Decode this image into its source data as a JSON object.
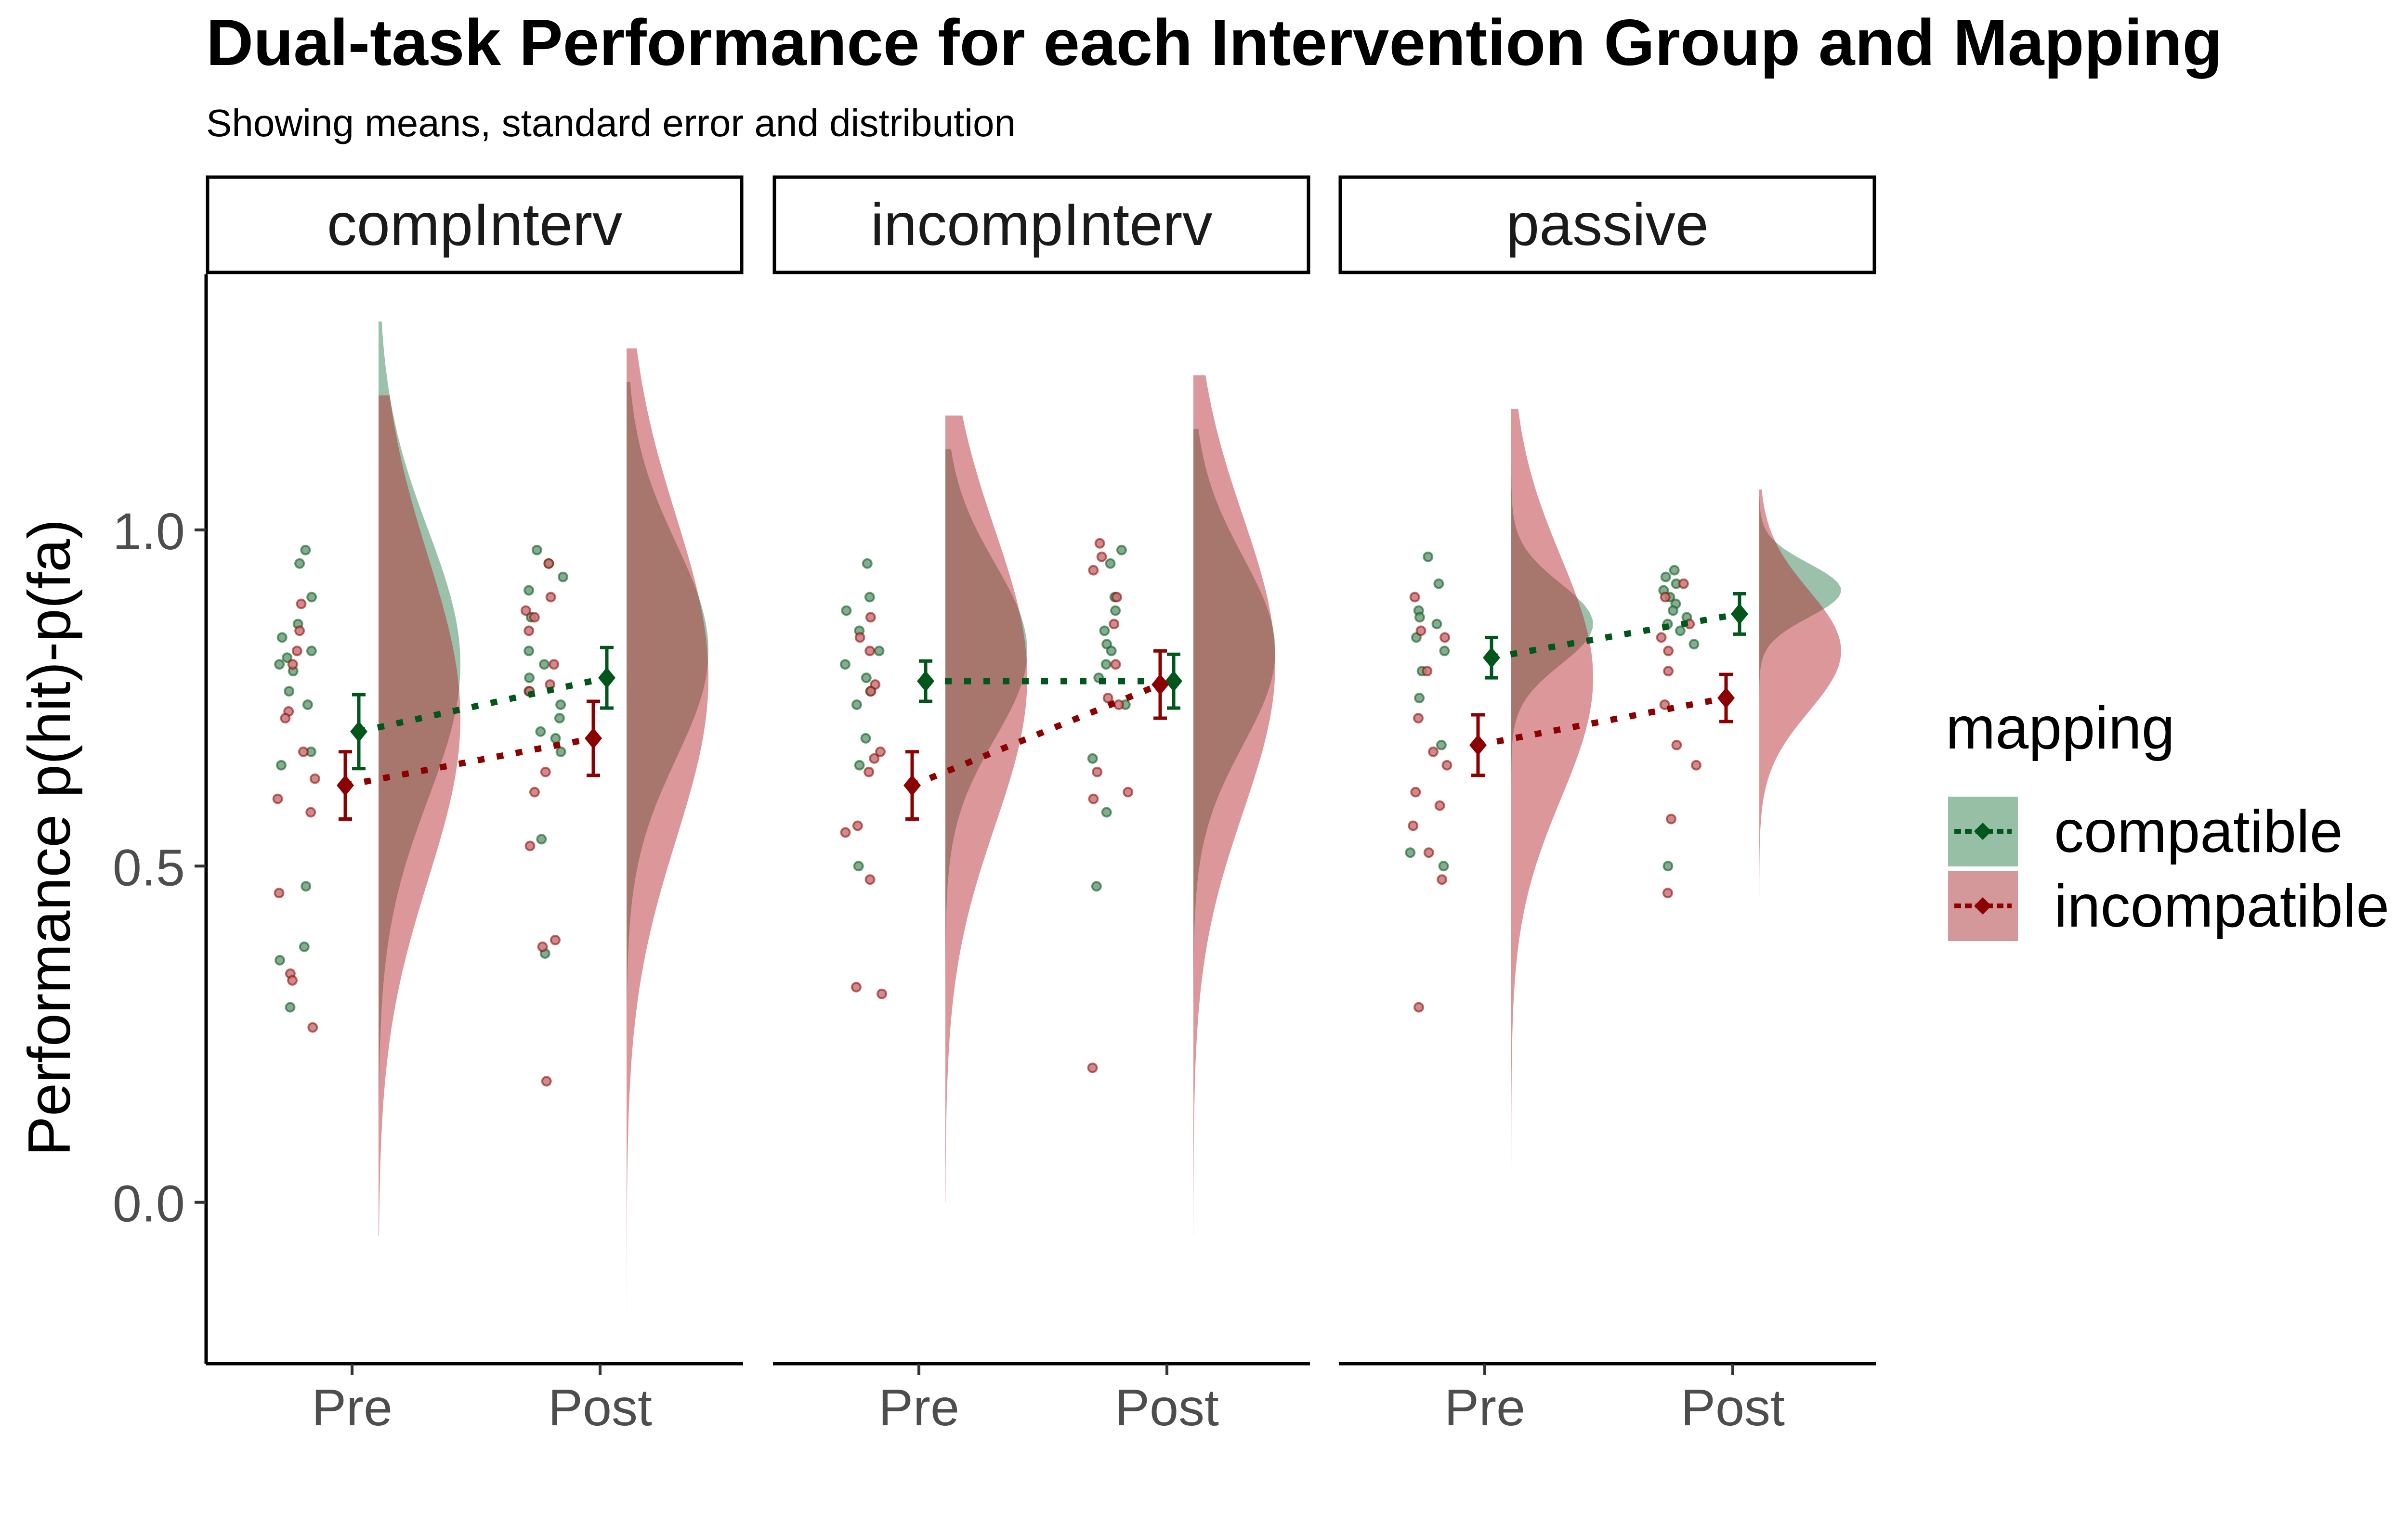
{
  "header": {
    "title": "Dual-task Performance for each Intervention Group and Mapping",
    "subtitle": "Showing means, standard error and distribution"
  },
  "legend": {
    "title": "mapping",
    "items": [
      {
        "label": "compatible",
        "color": "#00561b",
        "fill": "#96bfa6"
      },
      {
        "label": "incompatible",
        "color": "#8b0000",
        "fill": "#d5989a"
      }
    ]
  },
  "chart_data": {
    "type": "raincloud (half-violin + jittered points + mean ± SE)",
    "ylabel": "Performance p(hit)-p(fa)",
    "xlabel": "",
    "ylim": [
      -0.24,
      1.38
    ],
    "yticks": [
      0.0,
      0.5,
      1.0
    ],
    "ytick_labels": [
      "0.0",
      "0.5",
      "1.0"
    ],
    "categories": [
      "Pre",
      "Post"
    ],
    "facets": [
      {
        "name": "compInterv",
        "means": {
          "compatible": {
            "Pre": {
              "mean": 0.7,
              "se": 0.055
            },
            "Post": {
              "mean": 0.78,
              "se": 0.045
            }
          },
          "incompatible": {
            "Pre": {
              "mean": 0.62,
              "se": 0.05
            },
            "Post": {
              "mean": 0.69,
              "se": 0.055
            }
          }
        },
        "points": {
          "compatible": {
            "Pre": [
              0.97,
              0.95,
              0.9,
              0.86,
              0.84,
              0.82,
              0.81,
              0.8,
              0.79,
              0.76,
              0.74,
              0.67,
              0.65,
              0.47,
              0.38,
              0.36,
              0.29
            ],
            "Post": [
              0.97,
              0.95,
              0.93,
              0.91,
              0.87,
              0.82,
              0.8,
              0.78,
              0.76,
              0.74,
              0.72,
              0.7,
              0.69,
              0.67,
              0.54,
              0.37
            ]
          },
          "incompatible": {
            "Pre": [
              0.89,
              0.85,
              0.82,
              0.8,
              0.73,
              0.72,
              0.67,
              0.63,
              0.6,
              0.58,
              0.46,
              0.34,
              0.33,
              0.26
            ],
            "Post": [
              0.95,
              0.9,
              0.88,
              0.87,
              0.85,
              0.8,
              0.77,
              0.76,
              0.64,
              0.61,
              0.53,
              0.39,
              0.38,
              0.18
            ]
          }
        },
        "density": {
          "compatible": {
            "Pre": {
              "range": [
                -0.05,
                1.31
              ],
              "peak": 0.8,
              "sd": 0.2
            },
            "Post": {
              "range": [
                0.12,
                1.22
              ],
              "peak": 0.82,
              "sd": 0.16
            }
          },
          "incompatible": {
            "Pre": {
              "range": [
                -0.05,
                1.2
              ],
              "peak": 0.72,
              "sd": 0.24
            },
            "Post": {
              "range": [
                -0.17,
                1.27
              ],
              "peak": 0.78,
              "sd": 0.24
            }
          }
        }
      },
      {
        "name": "incompInterv",
        "means": {
          "compatible": {
            "Pre": {
              "mean": 0.775,
              "se": 0.03
            },
            "Post": {
              "mean": 0.775,
              "se": 0.04
            }
          },
          "incompatible": {
            "Pre": {
              "mean": 0.62,
              "se": 0.05
            },
            "Post": {
              "mean": 0.77,
              "se": 0.05
            }
          }
        },
        "points": {
          "compatible": {
            "Pre": [
              0.95,
              0.9,
              0.88,
              0.85,
              0.82,
              0.8,
              0.78,
              0.76,
              0.74,
              0.69,
              0.65,
              0.5
            ],
            "Post": [
              0.97,
              0.95,
              0.9,
              0.88,
              0.85,
              0.83,
              0.82,
              0.8,
              0.78,
              0.74,
              0.66,
              0.58,
              0.47
            ]
          },
          "incompatible": {
            "Pre": [
              0.87,
              0.84,
              0.82,
              0.77,
              0.76,
              0.67,
              0.66,
              0.64,
              0.56,
              0.55,
              0.48,
              0.32,
              0.31
            ],
            "Post": [
              0.98,
              0.96,
              0.94,
              0.9,
              0.86,
              0.8,
              0.75,
              0.74,
              0.64,
              0.61,
              0.6,
              0.2
            ]
          }
        },
        "density": {
          "compatible": {
            "Pre": {
              "range": [
                0.32,
                1.12
              ],
              "peak": 0.82,
              "sd": 0.13
            },
            "Post": {
              "range": [
                0.3,
                1.15
              ],
              "peak": 0.82,
              "sd": 0.14
            }
          },
          "incompatible": {
            "Pre": {
              "range": [
                0.0,
                1.17
              ],
              "peak": 0.78,
              "sd": 0.22
            },
            "Post": {
              "range": [
                -0.05,
                1.23
              ],
              "peak": 0.8,
              "sd": 0.22
            }
          }
        }
      },
      {
        "name": "passive",
        "means": {
          "compatible": {
            "Pre": {
              "mean": 0.81,
              "se": 0.03
            },
            "Post": {
              "mean": 0.875,
              "se": 0.03
            }
          },
          "incompatible": {
            "Pre": {
              "mean": 0.68,
              "se": 0.045
            },
            "Post": {
              "mean": 0.75,
              "se": 0.035
            }
          }
        },
        "points": {
          "compatible": {
            "Pre": [
              0.96,
              0.92,
              0.88,
              0.87,
              0.86,
              0.84,
              0.82,
              0.79,
              0.75,
              0.68,
              0.52,
              0.5
            ],
            "Post": [
              0.94,
              0.93,
              0.92,
              0.91,
              0.9,
              0.89,
              0.88,
              0.87,
              0.86,
              0.85,
              0.83,
              0.5
            ]
          },
          "incompatible": {
            "Pre": [
              0.9,
              0.85,
              0.84,
              0.79,
              0.72,
              0.67,
              0.65,
              0.61,
              0.59,
              0.56,
              0.52,
              0.48,
              0.29
            ],
            "Post": [
              0.92,
              0.9,
              0.86,
              0.84,
              0.82,
              0.79,
              0.74,
              0.68,
              0.65,
              0.57,
              0.46
            ]
          }
        },
        "density": {
          "compatible": {
            "Pre": {
              "range": [
                0.25,
                1.18
              ],
              "peak": 0.86,
              "sd": 0.06
            },
            "Post": {
              "range": [
                0.48,
                1.05
              ],
              "peak": 0.91,
              "sd": 0.04
            }
          },
          "incompatible": {
            "Pre": {
              "range": [
                0.02,
                1.18
              ],
              "peak": 0.78,
              "sd": 0.18
            },
            "Post": {
              "range": [
                0.31,
                1.06
              ],
              "peak": 0.82,
              "sd": 0.09
            }
          }
        }
      }
    ]
  }
}
